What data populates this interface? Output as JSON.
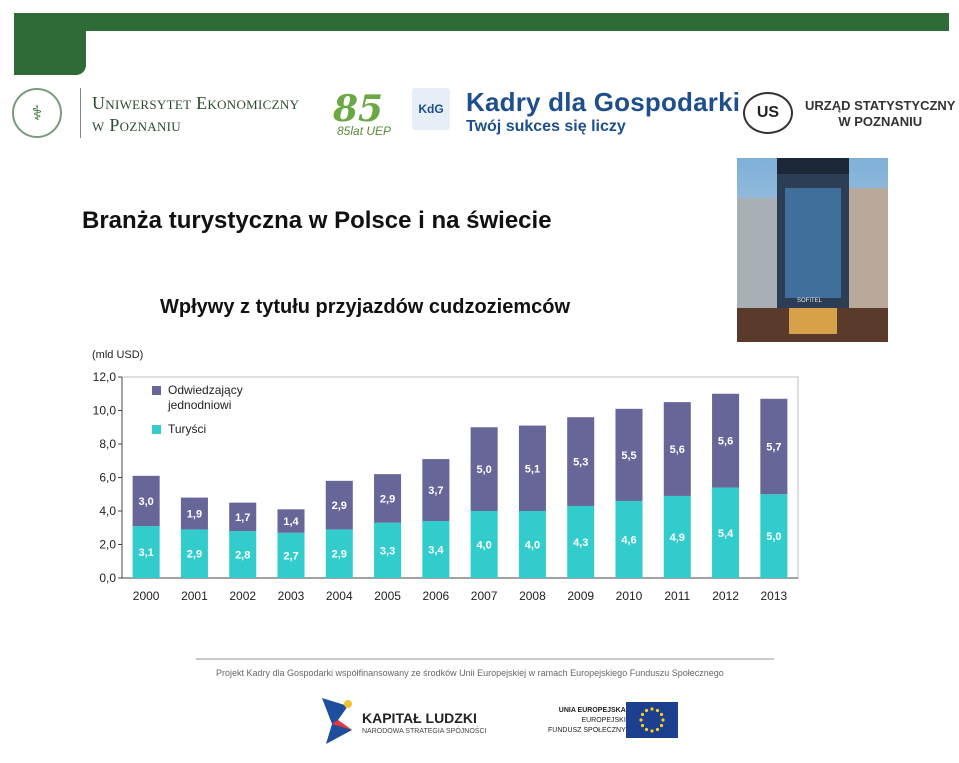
{
  "header": {
    "university_line1": "Uniwersytet Ekonomiczny",
    "university_line2": "w Poznaniu",
    "anniversary_number": "85",
    "anniversary_text": "85lat UEP",
    "kdg_badge": "KdG",
    "project_title": "Kadry dla Gospodarki",
    "project_slogan": "Twój sukces się liczy",
    "us_badge": "US",
    "office_line1": "URZĄD STATYSTYCZNY",
    "office_line2": "W POZNANIU",
    "photo_sign": "SOFITEL"
  },
  "page": {
    "title": "Branża turystyczna w Polsce i na świecie",
    "subtitle": "Wpływy z tytułu przyjazdów cudzoziemców"
  },
  "chart_data": {
    "type": "bar",
    "stacked": true,
    "unit_label": "(mld USD)",
    "categories": [
      "2000",
      "2001",
      "2002",
      "2003",
      "2004",
      "2005",
      "2006",
      "2007",
      "2008",
      "2009",
      "2010",
      "2011",
      "2012",
      "2013"
    ],
    "series": [
      {
        "name": "Turyści",
        "color": "#33cccc",
        "values": [
          3.1,
          2.9,
          2.8,
          2.7,
          2.9,
          3.3,
          3.4,
          4.0,
          4.0,
          4.3,
          4.6,
          4.9,
          5.4,
          5.0
        ],
        "labels": [
          "3,1",
          "2,9",
          "2,8",
          "2,7",
          "2,9",
          "3,3",
          "3,4",
          "4,0",
          "4,0",
          "4,3",
          "4,6",
          "4,9",
          "5,4",
          "5,0"
        ]
      },
      {
        "name": "Odwiedzający jednodniowi",
        "color": "#666699",
        "values": [
          3.0,
          1.9,
          1.7,
          1.4,
          2.9,
          2.9,
          3.7,
          5.0,
          5.1,
          5.3,
          5.5,
          5.6,
          5.6,
          5.7
        ],
        "labels": [
          "3,0",
          "1,9",
          "1,7",
          "1,4",
          "2,9",
          "2,9",
          "3,7",
          "5,0",
          "5,1",
          "5,3",
          "5,5",
          "5,6",
          "5,6",
          "5,7"
        ]
      }
    ],
    "legend": [
      {
        "line1": "Odwiedzający",
        "line2": "jednodniowi",
        "color": "#666699"
      },
      {
        "line1": "Turyści",
        "line2": "",
        "color": "#33cccc"
      }
    ],
    "legend_position": "top-left",
    "ylim": [
      0,
      12
    ],
    "yticks": [
      "0,0",
      "2,0",
      "4,0",
      "6,0",
      "8,0",
      "10,0",
      "12,0"
    ],
    "ytick_values": [
      0,
      2,
      4,
      6,
      8,
      10,
      12
    ],
    "grid": false
  },
  "footer": {
    "cofinancing": "Projekt Kadry dla Gospodarki współfinansowany ze środków Unii Europejskiej w ramach Europejskiego Funduszu Społecznego",
    "kl_title": "KAPITAŁ LUDZKI",
    "kl_subtitle": "NARODOWA STRATEGIA SPÓJNOŚCI",
    "ue_line1": "UNIA EUROPEJSKA",
    "ue_line2": "EUROPEJSKI",
    "ue_line3": "FUNDUSZ SPOŁECZNY"
  }
}
